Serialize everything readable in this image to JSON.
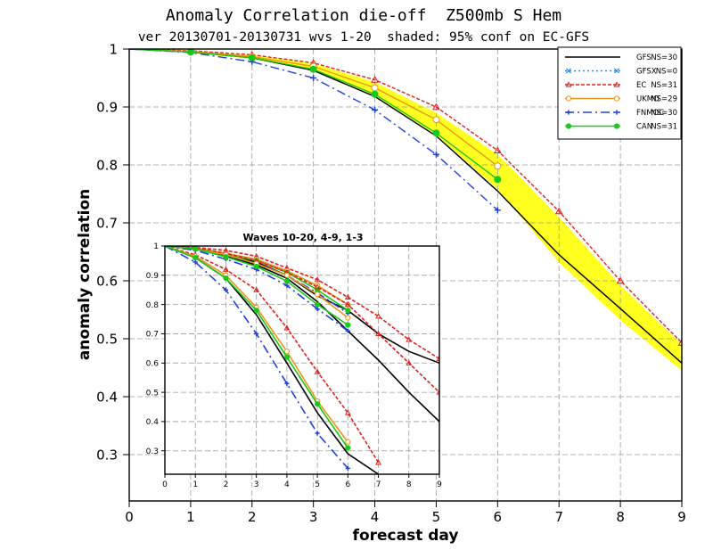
{
  "header": {
    "title": "Anomaly Correlation die-off  Z500mb S Hem",
    "subtitle": "ver 20130701-20130731 wvs 1-20  shaded: 95% conf on EC-GFS"
  },
  "colors": {
    "GFS": "#000000",
    "GFSX": "#1e90ff",
    "EC": "#e02020",
    "UKMO": "#e8961e",
    "FNMOC": "#2040e0",
    "CAN": "#19c819",
    "shade": "#ffff20"
  },
  "chart_data": [
    {
      "type": "line",
      "xlabel": "forecast day",
      "ylabel": "anomaly correlation",
      "xlim": [
        0,
        9
      ],
      "ylim": [
        0.22,
        1.0
      ],
      "xticks": [
        "0",
        "1",
        "2",
        "3",
        "4",
        "5",
        "6",
        "7",
        "8",
        "9"
      ],
      "yticks": [
        "0.3",
        "0.4",
        "0.5",
        "0.6",
        "0.7",
        "0.8",
        "0.9",
        "1"
      ],
      "grid": true,
      "legend": {
        "placement": "top-right",
        "entries": [
          {
            "name": "GFS",
            "ns": "NS=30",
            "marker": "none",
            "dash": "solid"
          },
          {
            "name": "GFSX",
            "ns": "NS=0",
            "marker": "x",
            "dash": "dot"
          },
          {
            "name": "EC",
            "ns": "NS=31",
            "marker": "triangle",
            "dash": "short"
          },
          {
            "name": "UKMO",
            "ns": "NS=29",
            "marker": "circle-open",
            "dash": "solid"
          },
          {
            "name": "FNMOC",
            "ns": "NS=30",
            "marker": "plus",
            "dash": "dashdot"
          },
          {
            "name": "CAN",
            "ns": "NS=31",
            "marker": "circle-filled",
            "dash": "solid"
          }
        ]
      },
      "shade_band": {
        "x": [
          1,
          2,
          3,
          4,
          5,
          6,
          7,
          8,
          9
        ],
        "lower": [
          0.993,
          0.983,
          0.963,
          0.918,
          0.852,
          0.758,
          0.632,
          0.532,
          0.445
        ],
        "upper": [
          0.996,
          0.99,
          0.975,
          0.943,
          0.89,
          0.818,
          0.71,
          0.592,
          0.49
        ]
      },
      "series": [
        {
          "name": "GFS",
          "x": [
            0,
            1,
            2,
            3,
            4,
            5,
            6,
            7,
            8,
            9
          ],
          "y": [
            1.0,
            0.995,
            0.985,
            0.963,
            0.918,
            0.85,
            0.755,
            0.645,
            0.552,
            0.458
          ]
        },
        {
          "name": "EC",
          "x": [
            0,
            1,
            2,
            3,
            4,
            5,
            6,
            7,
            8,
            9
          ],
          "y": [
            1.0,
            0.997,
            0.99,
            0.976,
            0.947,
            0.9,
            0.825,
            0.72,
            0.6,
            0.493
          ]
        },
        {
          "name": "UKMO",
          "x": [
            0,
            1,
            2,
            3,
            4,
            5,
            6
          ],
          "y": [
            1.0,
            0.996,
            0.987,
            0.97,
            0.933,
            0.878,
            0.798
          ]
        },
        {
          "name": "FNMOC",
          "x": [
            0,
            1,
            2,
            3,
            4,
            5,
            6
          ],
          "y": [
            1.0,
            0.994,
            0.978,
            0.95,
            0.895,
            0.818,
            0.722
          ]
        },
        {
          "name": "CAN",
          "x": [
            0,
            1,
            2,
            3,
            4,
            5,
            6
          ],
          "y": [
            1.0,
            0.995,
            0.985,
            0.965,
            0.922,
            0.855,
            0.775
          ]
        }
      ]
    },
    {
      "type": "line",
      "title": "Waves 10-20, 4-9, 1-3",
      "xlim": [
        0,
        9
      ],
      "ylim": [
        0.22,
        1.0
      ],
      "xticks": [
        "0",
        "1",
        "2",
        "3",
        "4",
        "5",
        "6",
        "7",
        "8",
        "9"
      ],
      "yticks": [
        "0.3",
        "0.4",
        "0.5",
        "0.6",
        "0.7",
        "0.8",
        "0.9",
        "1"
      ],
      "grid": true,
      "series": [
        {
          "name": "GFS",
          "group": "1-3",
          "x": [
            0,
            1,
            2,
            3,
            4,
            5,
            6,
            7,
            8,
            9
          ],
          "y": [
            1.0,
            0.99,
            0.97,
            0.945,
            0.9,
            0.83,
            0.78,
            0.7,
            0.64,
            0.6
          ]
        },
        {
          "name": "EC",
          "group": "1-3",
          "x": [
            0,
            1,
            2,
            3,
            4,
            5,
            6,
            7,
            8,
            9
          ],
          "y": [
            1.0,
            0.995,
            0.985,
            0.965,
            0.925,
            0.885,
            0.825,
            0.76,
            0.68,
            0.615
          ]
        },
        {
          "name": "UKMO",
          "group": "1-3",
          "x": [
            0,
            1,
            2,
            3,
            4,
            5,
            6
          ],
          "y": [
            1.0,
            0.993,
            0.975,
            0.955,
            0.915,
            0.865,
            0.8
          ]
        },
        {
          "name": "FNMOC",
          "group": "1-3",
          "x": [
            0,
            1,
            2,
            3,
            4,
            5,
            6
          ],
          "y": [
            1.0,
            0.99,
            0.965,
            0.94,
            0.9,
            0.84,
            0.77
          ]
        },
        {
          "name": "CAN",
          "group": "1-3",
          "x": [
            0,
            1,
            2,
            3,
            4,
            5,
            6
          ],
          "y": [
            1.0,
            0.993,
            0.97,
            0.95,
            0.91,
            0.85,
            0.78
          ]
        },
        {
          "name": "GFS",
          "group": "4-9",
          "x": [
            0,
            1,
            2,
            3,
            4,
            5,
            6,
            7,
            8,
            9
          ],
          "y": [
            1.0,
            0.99,
            0.965,
            0.935,
            0.89,
            0.81,
            0.71,
            0.61,
            0.5,
            0.4
          ]
        },
        {
          "name": "EC",
          "group": "4-9",
          "x": [
            0,
            1,
            2,
            3,
            4,
            5,
            6,
            7,
            8,
            9
          ],
          "y": [
            1.0,
            0.993,
            0.975,
            0.95,
            0.91,
            0.86,
            0.8,
            0.7,
            0.6,
            0.5
          ]
        },
        {
          "name": "UKMO",
          "group": "4-9",
          "x": [
            0,
            1,
            2,
            3,
            4,
            5,
            6
          ],
          "y": [
            1.0,
            0.99,
            0.97,
            0.94,
            0.9,
            0.835,
            0.755
          ]
        },
        {
          "name": "FNMOC",
          "group": "4-9",
          "x": [
            0,
            1,
            2,
            3,
            4,
            5,
            6
          ],
          "y": [
            1.0,
            0.985,
            0.955,
            0.92,
            0.865,
            0.785,
            0.71
          ]
        },
        {
          "name": "CAN",
          "group": "4-9",
          "x": [
            0,
            1,
            2,
            3,
            4,
            5,
            6
          ],
          "y": [
            1.0,
            0.99,
            0.963,
            0.93,
            0.88,
            0.8,
            0.73
          ]
        },
        {
          "name": "GFS",
          "group": "10-20",
          "x": [
            0,
            1,
            2,
            3,
            4,
            5,
            6,
            7
          ],
          "y": [
            1.0,
            0.96,
            0.89,
            0.765,
            0.6,
            0.43,
            0.29,
            0.22
          ]
        },
        {
          "name": "EC",
          "group": "10-20",
          "x": [
            0,
            1,
            2,
            3,
            4,
            5,
            6,
            7
          ],
          "y": [
            1.0,
            0.97,
            0.92,
            0.85,
            0.72,
            0.57,
            0.43,
            0.26
          ]
        },
        {
          "name": "UKMO",
          "group": "10-20",
          "x": [
            0,
            1,
            2,
            3,
            4,
            5,
            6
          ],
          "y": [
            1.0,
            0.965,
            0.9,
            0.79,
            0.64,
            0.47,
            0.33
          ]
        },
        {
          "name": "FNMOC",
          "group": "10-20",
          "x": [
            0,
            1,
            2,
            3,
            4,
            5,
            6
          ],
          "y": [
            1.0,
            0.945,
            0.85,
            0.7,
            0.53,
            0.36,
            0.24
          ]
        },
        {
          "name": "CAN",
          "group": "10-20",
          "x": [
            0,
            1,
            2,
            3,
            4,
            5,
            6
          ],
          "y": [
            1.0,
            0.96,
            0.89,
            0.78,
            0.62,
            0.46,
            0.31
          ]
        }
      ]
    }
  ]
}
